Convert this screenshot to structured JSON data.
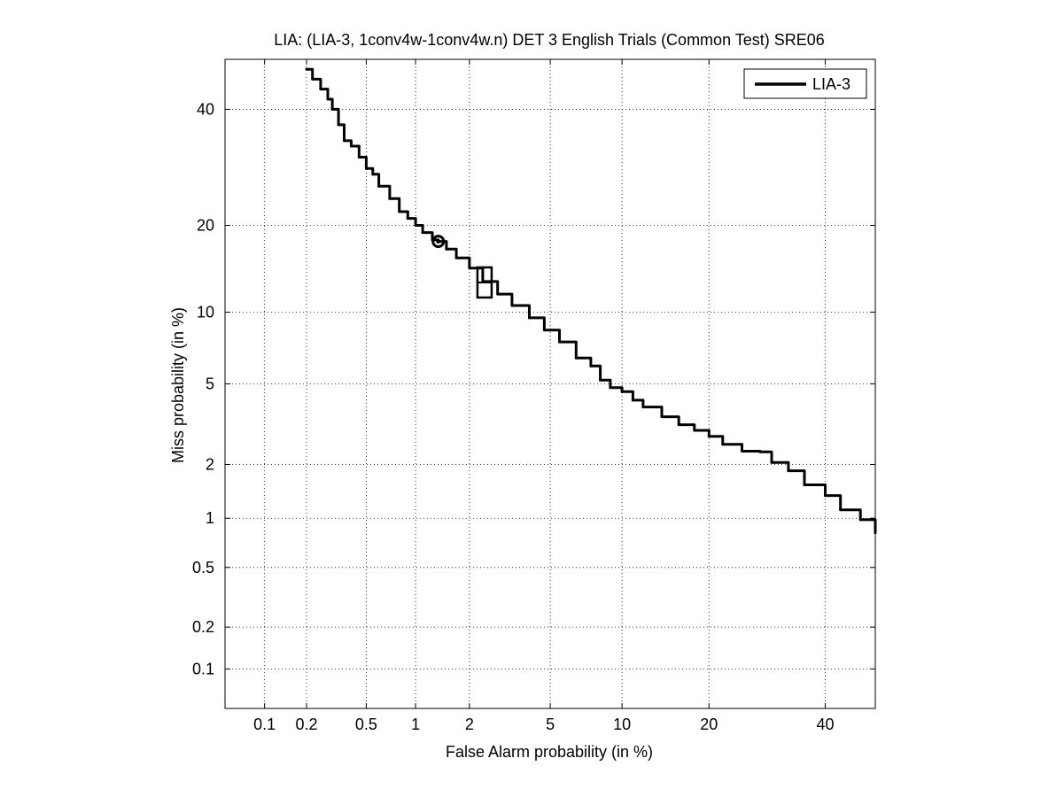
{
  "chart_data": {
    "type": "line",
    "title": "LIA: (LIA-3, 1conv4w-1conv4w.n) DET 3 English Trials (Common Test) SRE06",
    "xlabel": "False Alarm probability (in %)",
    "ylabel": "Miss probability (in %)",
    "x_scale": "probit",
    "y_scale": "probit",
    "xlim": [
      0.05,
      50
    ],
    "ylim": [
      0.05,
      50
    ],
    "grid": true,
    "legend_position": "top-right",
    "x_ticks": [
      0.1,
      0.2,
      0.5,
      1,
      2,
      5,
      10,
      20,
      40
    ],
    "x_tick_labels": [
      "0.1",
      "0.2",
      "0.5",
      "1",
      "2",
      "5",
      "10",
      "20",
      "40"
    ],
    "y_ticks": [
      0.1,
      0.2,
      0.5,
      1,
      2,
      5,
      10,
      20,
      40
    ],
    "y_tick_labels": [
      "0.1",
      "0.2",
      "0.5",
      "1",
      "2",
      "5",
      "10",
      "20",
      "40"
    ],
    "series": [
      {
        "name": "LIA-3",
        "color": "#000000",
        "x": [
          0.2,
          0.22,
          0.25,
          0.28,
          0.3,
          0.33,
          0.36,
          0.4,
          0.45,
          0.5,
          0.55,
          0.6,
          0.7,
          0.8,
          0.9,
          1.0,
          1.1,
          1.25,
          1.35,
          1.5,
          1.7,
          2.0,
          2.35,
          2.8,
          3.3,
          4.0,
          4.7,
          5.5,
          6.5,
          7.5,
          8.2,
          9.0,
          10.0,
          11.0,
          12.0,
          14.0,
          16.0,
          18.0,
          20.0,
          22.0,
          25.0,
          28.0,
          30.0,
          33.0,
          36.0,
          40.0,
          43.0,
          47.0,
          50.0
        ],
        "y": [
          48,
          46,
          44,
          42,
          40,
          37,
          34,
          33,
          31,
          29,
          28,
          26,
          24,
          22,
          21,
          20,
          19,
          18,
          17.8,
          16.8,
          15.7,
          14.5,
          13,
          11.7,
          10.6,
          9.5,
          8.5,
          7.6,
          6.5,
          6.0,
          5.2,
          4.8,
          4.6,
          4.2,
          3.9,
          3.5,
          3.2,
          3.0,
          2.8,
          2.55,
          2.35,
          2.33,
          2.05,
          1.85,
          1.55,
          1.35,
          1.12,
          0.98,
          0.82
        ]
      }
    ],
    "markers": [
      {
        "shape": "circle",
        "x": 1.35,
        "y": 17.8
      },
      {
        "shape": "box",
        "x": 2.4,
        "y": 12.9
      }
    ]
  }
}
